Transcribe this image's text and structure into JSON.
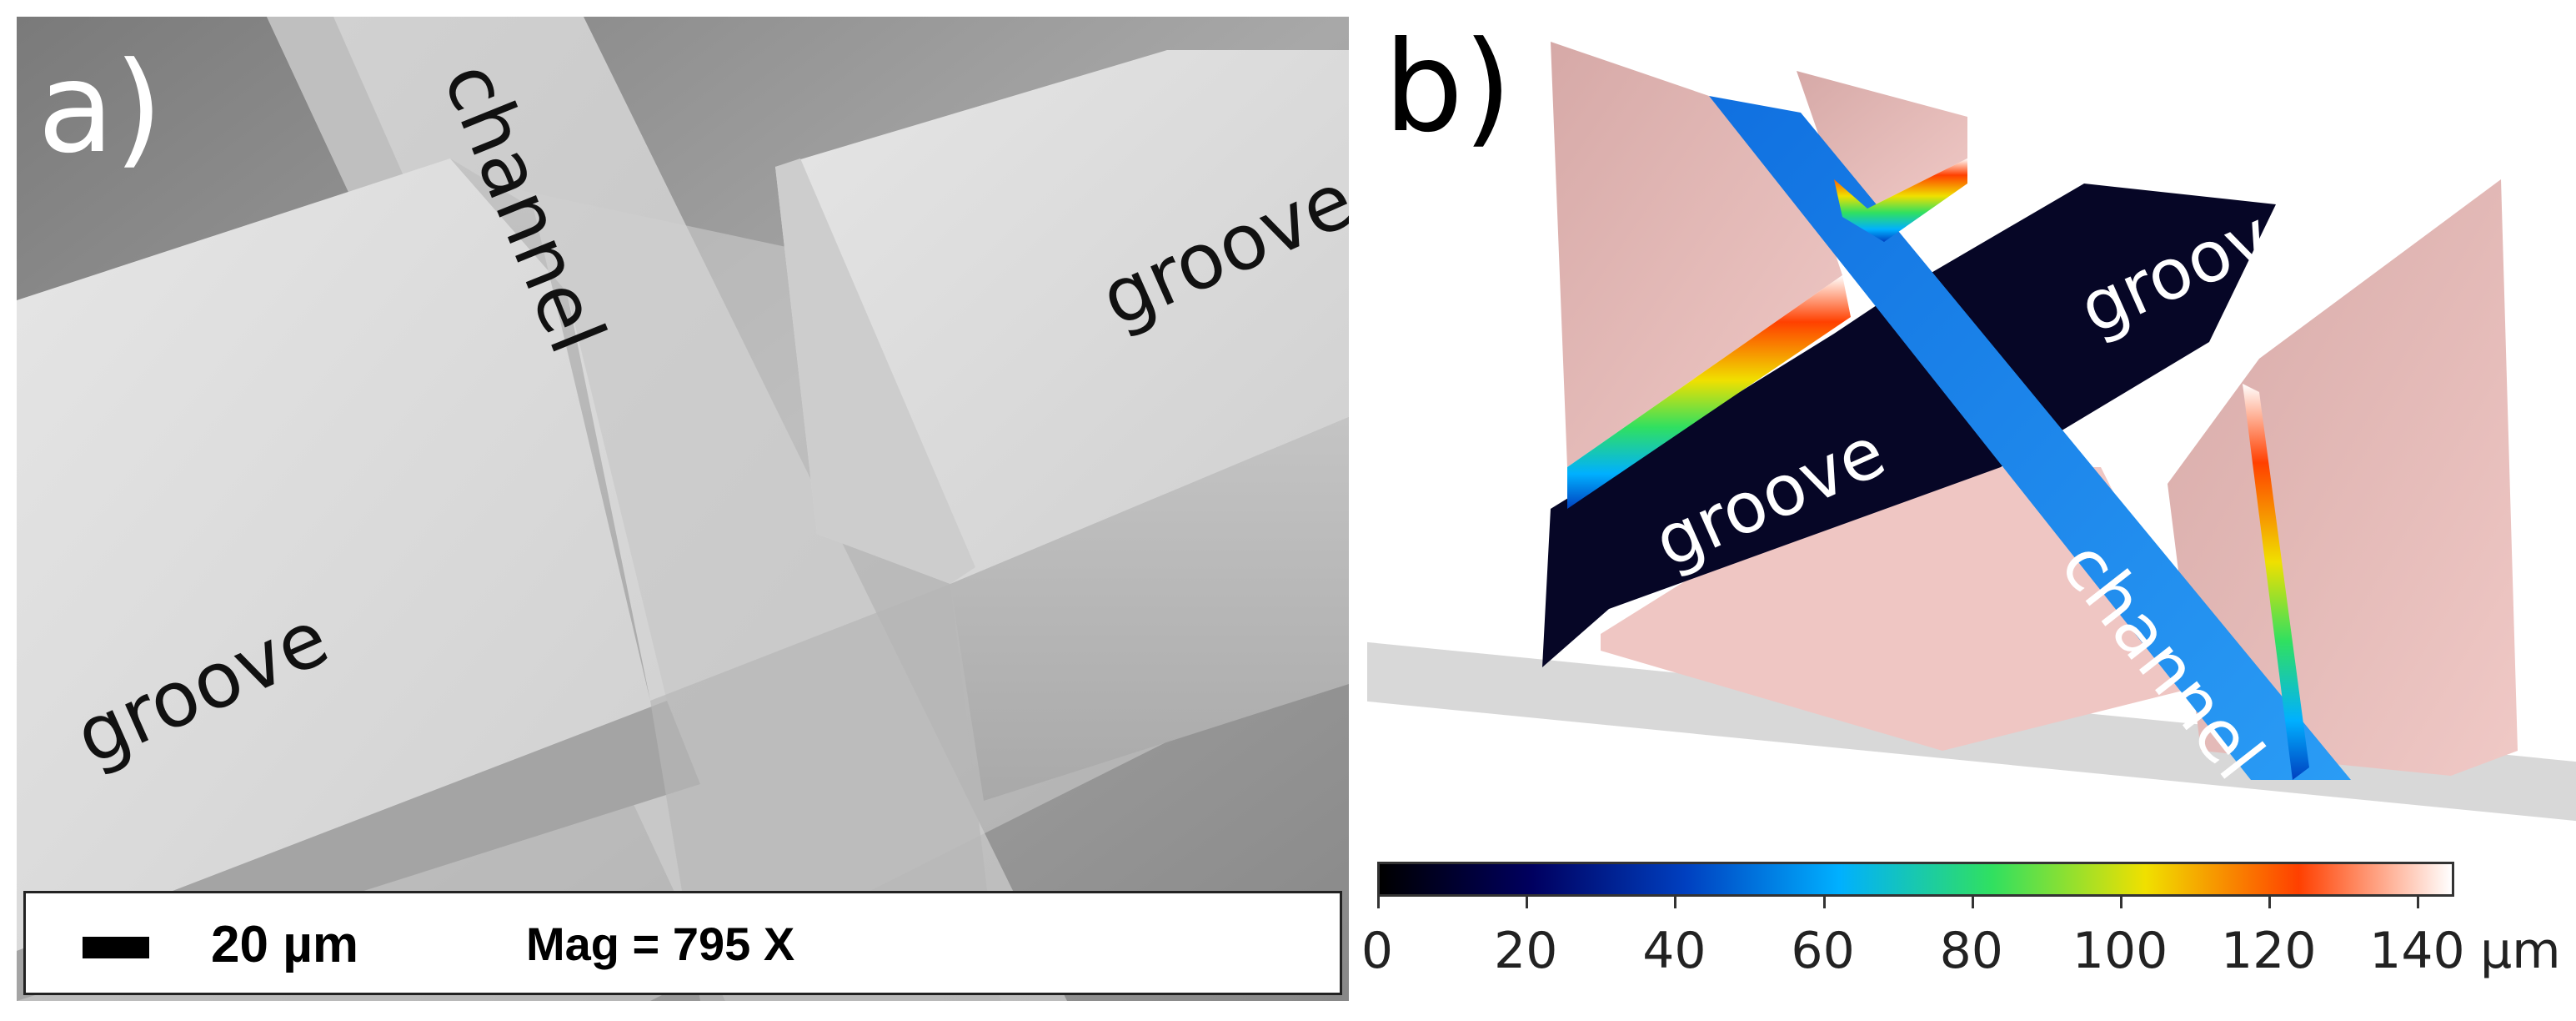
{
  "panel_a": {
    "label": "a)",
    "text_channel": "channel",
    "text_groove_right": "groove",
    "text_groove_left": "groove",
    "scale_bar": {
      "length_label": "20 µm",
      "magnification": "Mag = 795 X"
    }
  },
  "panel_b": {
    "label": "b)",
    "text_groove_left": "groove",
    "text_groove_right": "groove",
    "text_channel": "channel",
    "colorbar": {
      "ticks": [
        "0",
        "20",
        "40",
        "60",
        "80",
        "100",
        "120",
        "140"
      ],
      "unit": "µm",
      "range": [
        0,
        145
      ],
      "colors": [
        "#000000",
        "#000060",
        "#0040c0",
        "#00b0ff",
        "#30e060",
        "#f0e000",
        "#ff4000",
        "#ffffff"
      ]
    }
  }
}
